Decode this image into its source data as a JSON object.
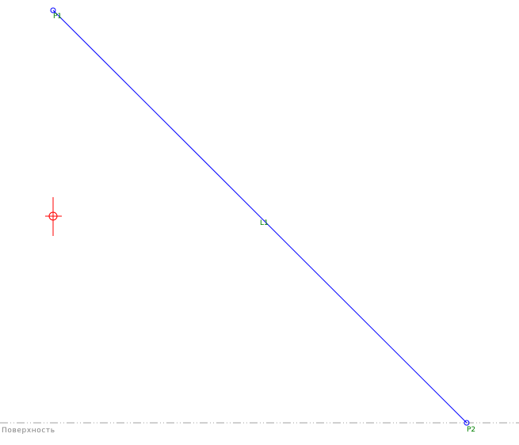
{
  "points": [
    {
      "label": "P1",
      "color": "#008000"
    },
    {
      "label": "P2",
      "color": "#008000"
    }
  ],
  "line": {
    "label": "L1",
    "color": "#0000ff"
  },
  "surface": {
    "label": "Поверхность",
    "color": "#a0a0a0"
  },
  "crosshair": {
    "color": "#ff0000"
  }
}
